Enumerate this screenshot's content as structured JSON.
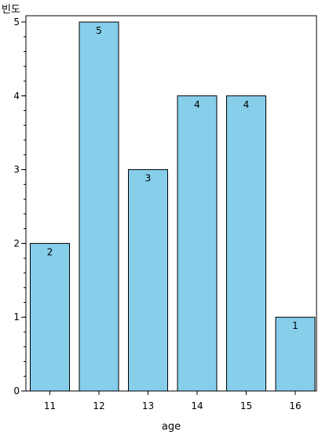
{
  "chart_data": {
    "type": "bar",
    "categories": [
      "11",
      "12",
      "13",
      "14",
      "15",
      "16"
    ],
    "values": [
      2,
      5,
      3,
      4,
      4,
      1
    ],
    "data_labels": [
      "2",
      "5",
      "3",
      "4",
      "4",
      "1"
    ],
    "xlabel": "age",
    "ylabel": "빈도",
    "ylim": [
      0,
      5
    ],
    "y_ticks": [
      "0",
      "1",
      "2",
      "3",
      "4",
      "5"
    ],
    "bar_color": "#87CEEB",
    "bar_outline_color": "#000000",
    "grid": false,
    "legend": "none"
  }
}
